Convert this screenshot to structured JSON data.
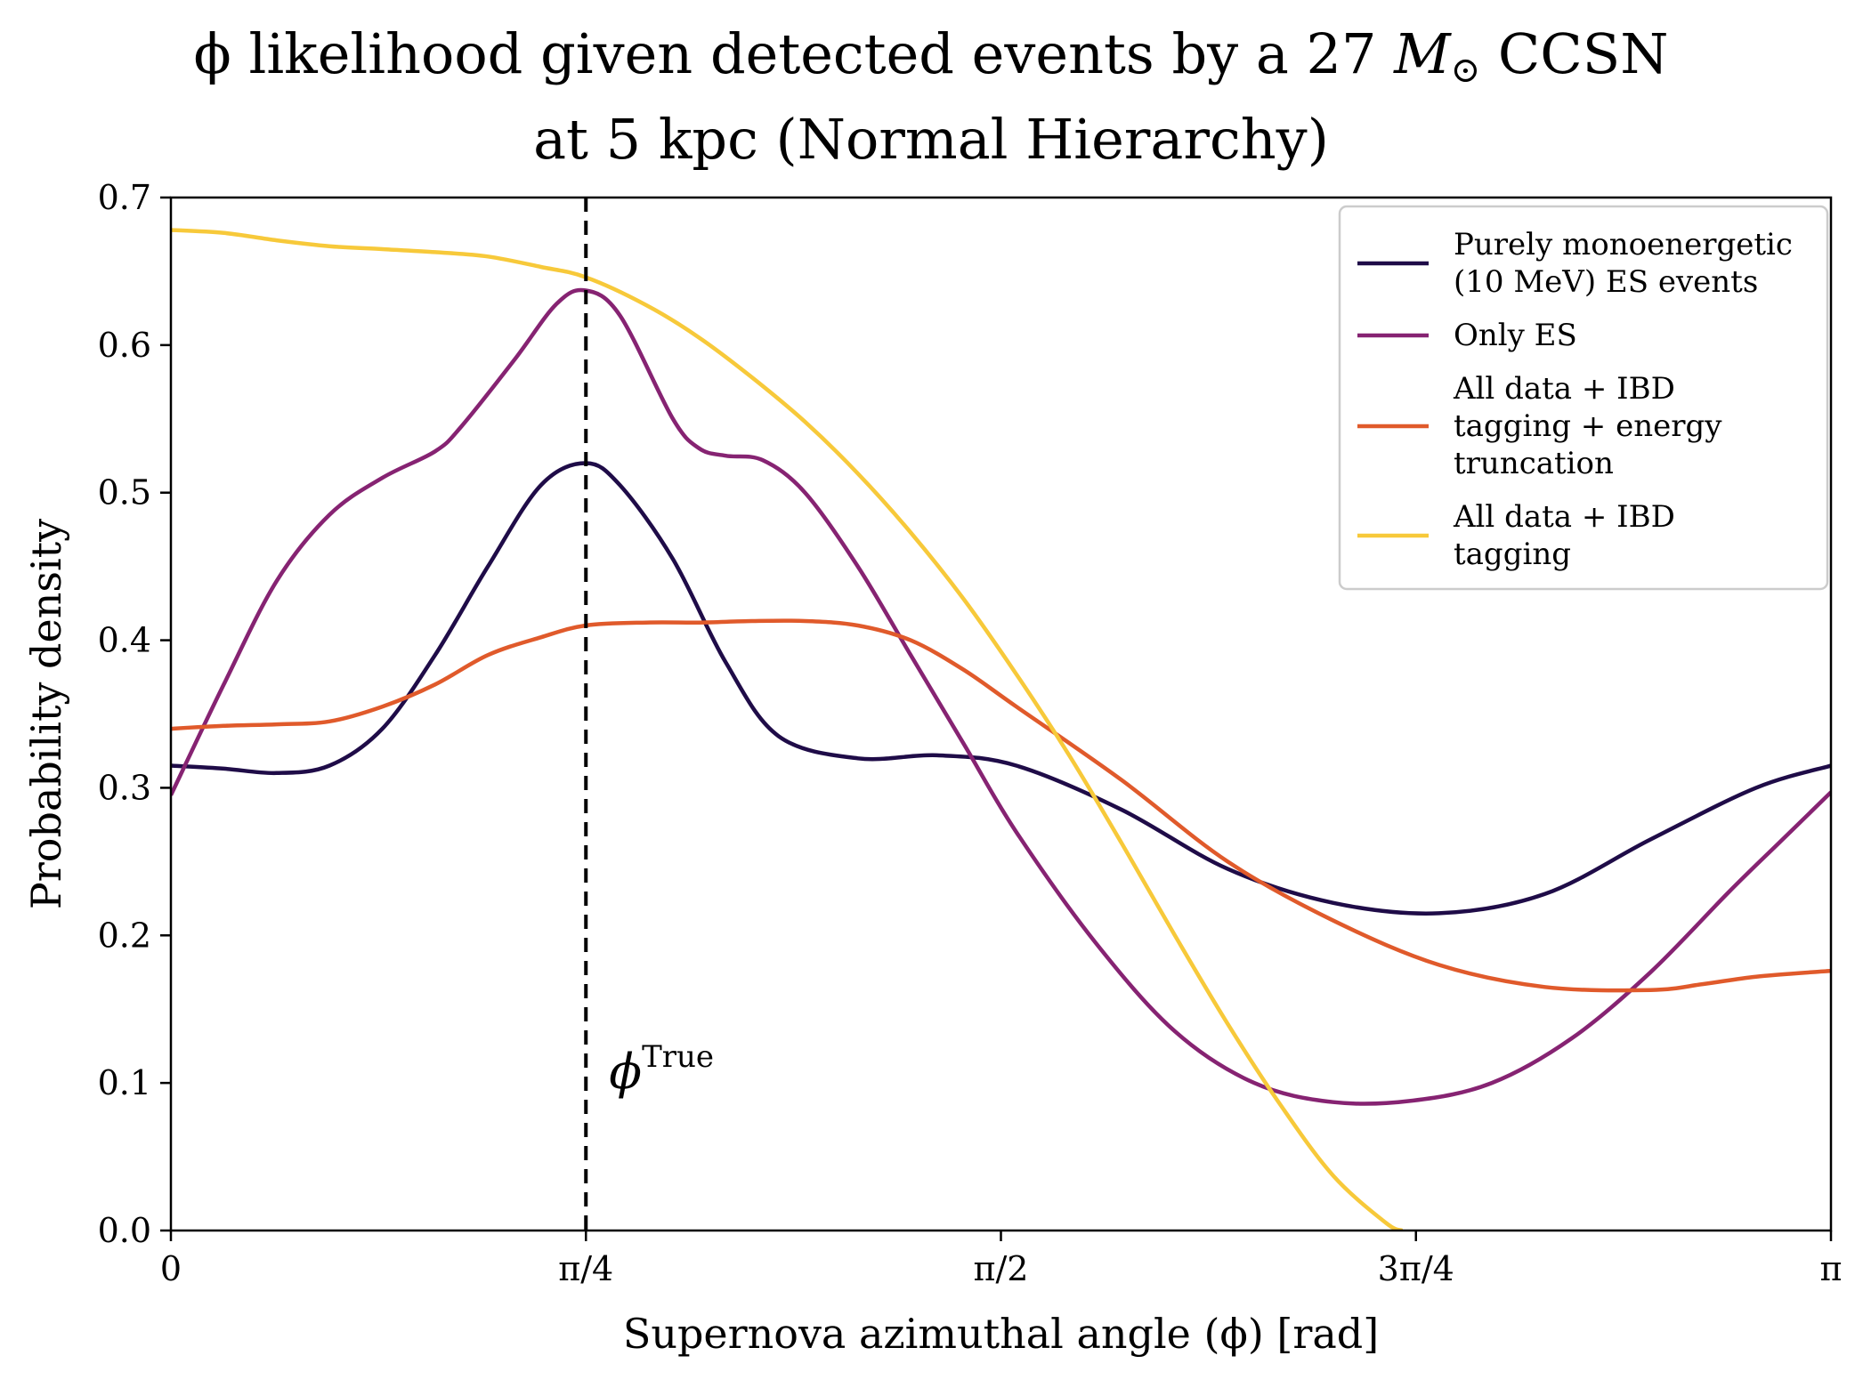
{
  "chart_data": {
    "type": "line",
    "title_line1_pre": "ϕ likelihood given detected events by a 27 ",
    "title_line1_italic": "M",
    "title_line1_sub": "⊙",
    "title_line1_post": " CCSN",
    "title_line2": "at 5 kpc (Normal Hierarchy)",
    "xlabel": "Supernova azimuthal angle (ϕ) [rad]",
    "ylabel": "Probability density",
    "xlim": [
      0,
      3.14159
    ],
    "ylim": [
      0,
      0.7
    ],
    "xticks": [
      {
        "value": 0,
        "label": "0"
      },
      {
        "value": 0.785398,
        "label": "π/4"
      },
      {
        "value": 1.570796,
        "label": "π/2"
      },
      {
        "value": 2.356194,
        "label": "3π/4"
      },
      {
        "value": 3.141593,
        "label": "π"
      }
    ],
    "yticks": [
      {
        "value": 0.0,
        "label": "0.0"
      },
      {
        "value": 0.1,
        "label": "0.1"
      },
      {
        "value": 0.2,
        "label": "0.2"
      },
      {
        "value": 0.3,
        "label": "0.3"
      },
      {
        "value": 0.4,
        "label": "0.4"
      },
      {
        "value": 0.5,
        "label": "0.5"
      },
      {
        "value": 0.6,
        "label": "0.6"
      },
      {
        "value": 0.7,
        "label": "0.7"
      }
    ],
    "grid": false,
    "legend_position": "top-right",
    "true_value": {
      "x": 0.785398,
      "label_main": "ϕ",
      "label_sup": "True",
      "style": "dashed"
    },
    "series": [
      {
        "legend_lines": [
          "Purely monoenergetic",
          "(10 MeV) ES events"
        ],
        "color": "#1f0c48",
        "x": [
          0,
          0.1,
          0.2,
          0.3,
          0.4,
          0.5,
          0.6,
          0.7,
          0.785,
          0.85,
          0.95,
          1.05,
          1.15,
          1.3,
          1.45,
          1.6,
          1.8,
          2.0,
          2.2,
          2.4,
          2.6,
          2.8,
          3.0,
          3.1416
        ],
        "y": [
          0.315,
          0.313,
          0.31,
          0.315,
          0.34,
          0.39,
          0.45,
          0.505,
          0.52,
          0.505,
          0.455,
          0.385,
          0.335,
          0.32,
          0.322,
          0.315,
          0.285,
          0.245,
          0.222,
          0.215,
          0.228,
          0.265,
          0.3,
          0.315
        ]
      },
      {
        "legend_lines": [
          "Only ES"
        ],
        "color": "#862372",
        "x": [
          0,
          0.1,
          0.2,
          0.3,
          0.4,
          0.5,
          0.55,
          0.65,
          0.73,
          0.785,
          0.85,
          0.95,
          1.0,
          1.05,
          1.12,
          1.2,
          1.3,
          1.4,
          1.5,
          1.6,
          1.75,
          1.9,
          2.05,
          2.2,
          2.35,
          2.5,
          2.65,
          2.8,
          2.95,
          3.05,
          3.1416
        ],
        "y": [
          0.295,
          0.37,
          0.44,
          0.485,
          0.51,
          0.528,
          0.545,
          0.59,
          0.628,
          0.637,
          0.62,
          0.55,
          0.53,
          0.525,
          0.522,
          0.5,
          0.45,
          0.39,
          0.33,
          0.27,
          0.195,
          0.135,
          0.1,
          0.087,
          0.088,
          0.1,
          0.13,
          0.175,
          0.23,
          0.265,
          0.297
        ]
      },
      {
        "legend_lines": [
          "All data + IBD",
          "tagging + energy",
          "truncation"
        ],
        "color": "#e05a2b",
        "x": [
          0,
          0.1,
          0.2,
          0.3,
          0.4,
          0.5,
          0.6,
          0.7,
          0.785,
          0.9,
          1.0,
          1.1,
          1.2,
          1.3,
          1.4,
          1.5,
          1.6,
          1.8,
          2.0,
          2.2,
          2.4,
          2.6,
          2.8,
          2.9,
          3.0,
          3.1416
        ],
        "y": [
          0.34,
          0.342,
          0.343,
          0.345,
          0.355,
          0.37,
          0.39,
          0.402,
          0.41,
          0.412,
          0.412,
          0.413,
          0.413,
          0.41,
          0.4,
          0.38,
          0.355,
          0.305,
          0.25,
          0.21,
          0.18,
          0.165,
          0.163,
          0.167,
          0.172,
          0.176
        ]
      },
      {
        "legend_lines": [
          "All data + IBD",
          "tagging"
        ],
        "color": "#f7c93a",
        "x": [
          0,
          0.1,
          0.2,
          0.3,
          0.4,
          0.5,
          0.6,
          0.7,
          0.785,
          0.9,
          1.0,
          1.1,
          1.2,
          1.3,
          1.4,
          1.5,
          1.6,
          1.7,
          1.8,
          1.9,
          2.0,
          2.1,
          2.2,
          2.3,
          2.33
        ],
        "y": [
          0.678,
          0.676,
          0.671,
          0.667,
          0.665,
          0.663,
          0.66,
          0.653,
          0.646,
          0.627,
          0.605,
          0.578,
          0.548,
          0.513,
          0.473,
          0.428,
          0.377,
          0.322,
          0.262,
          0.2,
          0.14,
          0.085,
          0.037,
          0.005,
          0.0
        ]
      }
    ]
  }
}
